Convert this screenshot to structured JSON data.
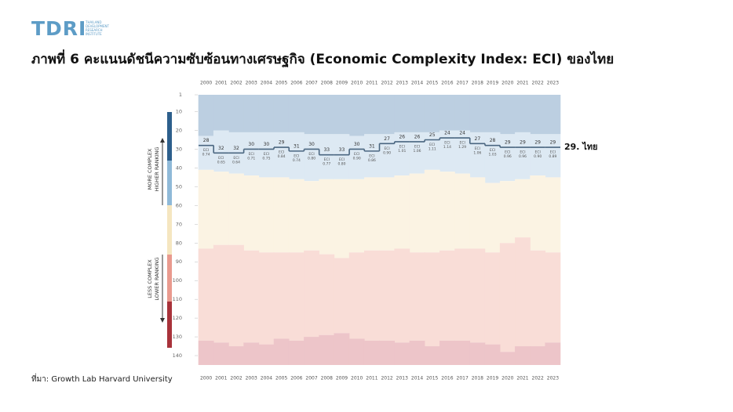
{
  "header": {
    "logo": "TDRI",
    "logo_subtitle": [
      "THAILAND",
      "DEVELOPMENT",
      "RESEARCH",
      "INSTITUTE"
    ]
  },
  "chart_data": {
    "type": "step",
    "title": "ภาพที่ 6 คะแนนดัชนีความซับซ้อนทางเศรษฐกิจ (Economic Complexity Index: ECI) ของไทย",
    "categories": [
      "2000",
      "2001",
      "2002",
      "2003",
      "2004",
      "2005",
      "2006",
      "2007",
      "2008",
      "2009",
      "2010",
      "2011",
      "2012",
      "2013",
      "2014",
      "2015",
      "2016",
      "2017",
      "2018",
      "2019",
      "2020",
      "2021",
      "2022",
      "2023"
    ],
    "series": [
      {
        "name": "29. ไทย",
        "color": "#4a6680",
        "values": [
          28,
          32,
          32,
          30,
          30,
          29,
          31,
          30,
          33,
          33,
          30,
          31,
          27,
          26,
          26,
          25,
          24,
          24,
          27,
          28,
          29,
          29,
          29,
          29
        ]
      }
    ],
    "eci_label": "ECI",
    "eci_labels": [
      "0.74",
      "0.65",
      "0.64",
      "0.71",
      "0.75",
      "0.84",
      "0.74",
      "0.80",
      "0.77",
      "0.80",
      "0.90",
      "0.86",
      "0.90",
      "1.01",
      "1.06",
      "1.11",
      "1.14",
      "1.29",
      "1.06",
      "1.03",
      "0.96",
      "0.96",
      "0.90",
      "0.89"
    ],
    "band_colors": [
      "#bccfe1",
      "#dde9f3",
      "#fbf3e3",
      "#f9ddd7",
      "#edc5c9"
    ],
    "boundaries": [
      [
        23,
        20,
        21,
        21,
        21,
        21,
        21,
        22,
        22,
        22,
        23,
        22,
        22,
        21,
        21,
        21,
        20,
        20,
        21,
        21,
        22,
        21,
        22,
        22
      ],
      [
        41,
        42,
        43,
        44,
        45,
        45,
        46,
        47,
        46,
        46,
        46,
        45,
        45,
        44,
        43,
        41,
        42,
        43,
        45,
        48,
        47,
        46,
        44,
        45
      ],
      [
        83,
        81,
        81,
        84,
        85,
        85,
        85,
        84,
        86,
        88,
        85,
        84,
        84,
        83,
        85,
        85,
        84,
        83,
        83,
        85,
        80,
        77,
        84,
        85
      ],
      [
        132,
        133,
        135,
        133,
        134,
        131,
        132,
        130,
        129,
        128,
        131,
        132,
        132,
        133,
        132,
        135,
        132,
        132,
        133,
        134,
        138,
        135,
        135,
        133
      ]
    ],
    "ylim": [
      1,
      145
    ],
    "yticks": [
      1,
      10,
      20,
      30,
      40,
      50,
      60,
      70,
      80,
      90,
      100,
      110,
      120,
      130,
      140
    ],
    "y_label_top": [
      "MORE COMPLEX",
      "HIGHER RANKING"
    ],
    "y_label_bottom": [
      "LESS COMPLEX",
      "LOWER RANKING"
    ]
  },
  "source": "ที่มา: Growth Lab Harvard University"
}
